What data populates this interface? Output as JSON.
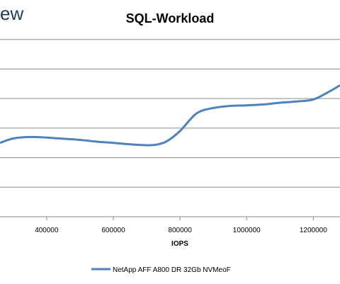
{
  "corner_text": "ew",
  "chart_data": {
    "type": "line",
    "title": "SQL-Workload",
    "xlabel": "IOPS",
    "ylabel": "",
    "x_ticks": [
      400000,
      600000,
      800000,
      1000000,
      1200000
    ],
    "x_tick_labels": [
      "400000",
      "600000",
      "800000",
      "1000000",
      "1200000"
    ],
    "xlim": [
      260000,
      1280000
    ],
    "ylim": [
      0,
      7
    ],
    "grid": true,
    "legend_position": "bottom",
    "series": [
      {
        "name": "NetApp AFF A800 DR 32Gb NVMeoF",
        "color": "#4f81bd",
        "x": [
          260000,
          300000,
          350000,
          400000,
          450000,
          500000,
          550000,
          600000,
          650000,
          700000,
          730000,
          760000,
          800000,
          850000,
          900000,
          950000,
          1000000,
          1050000,
          1100000,
          1150000,
          1200000,
          1250000,
          1280000
        ],
        "y": [
          2.5,
          2.65,
          2.7,
          2.68,
          2.64,
          2.6,
          2.54,
          2.5,
          2.45,
          2.42,
          2.44,
          2.55,
          2.9,
          3.5,
          3.68,
          3.75,
          3.77,
          3.8,
          3.86,
          3.9,
          3.97,
          4.25,
          4.45
        ]
      }
    ]
  }
}
